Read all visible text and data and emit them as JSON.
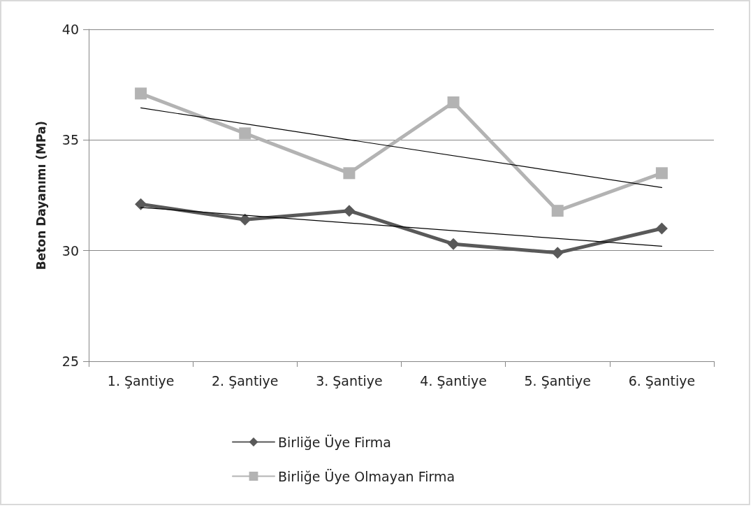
{
  "chart_data": {
    "type": "line",
    "ylabel": "Beton Dayanımı (MPa)",
    "categories": [
      "1. Şantiye",
      "2. Şantiye",
      "3. Şantiye",
      "4. Şantiye",
      "5. Şantiye",
      "6. Şantiye"
    ],
    "series": [
      {
        "name": "Birliğe Üye Firma",
        "color": "#595959",
        "marker": "diamond",
        "values": [
          32.1,
          31.4,
          31.8,
          30.3,
          29.9,
          31.0
        ]
      },
      {
        "name": "Birliğe Üye Olmayan Firma",
        "color": "#b3b3b3",
        "marker": "square",
        "values": [
          37.1,
          35.3,
          33.5,
          36.7,
          31.8,
          33.5
        ]
      },
      {
        "color": "#000000",
        "marker": "none",
        "x": [
          "1. Şantiye",
          "6. Şantiye"
        ],
        "values": [
          31.95,
          30.2
        ]
      },
      {
        "color": "#000000",
        "marker": "none",
        "x": [
          "1. Şantiye",
          "6. Şantiye"
        ],
        "values": [
          36.45,
          32.85
        ]
      }
    ],
    "ylim": [
      25,
      40
    ],
    "yticks": [
      25,
      30,
      35,
      40
    ],
    "grid": "y",
    "legend": "bottom"
  }
}
